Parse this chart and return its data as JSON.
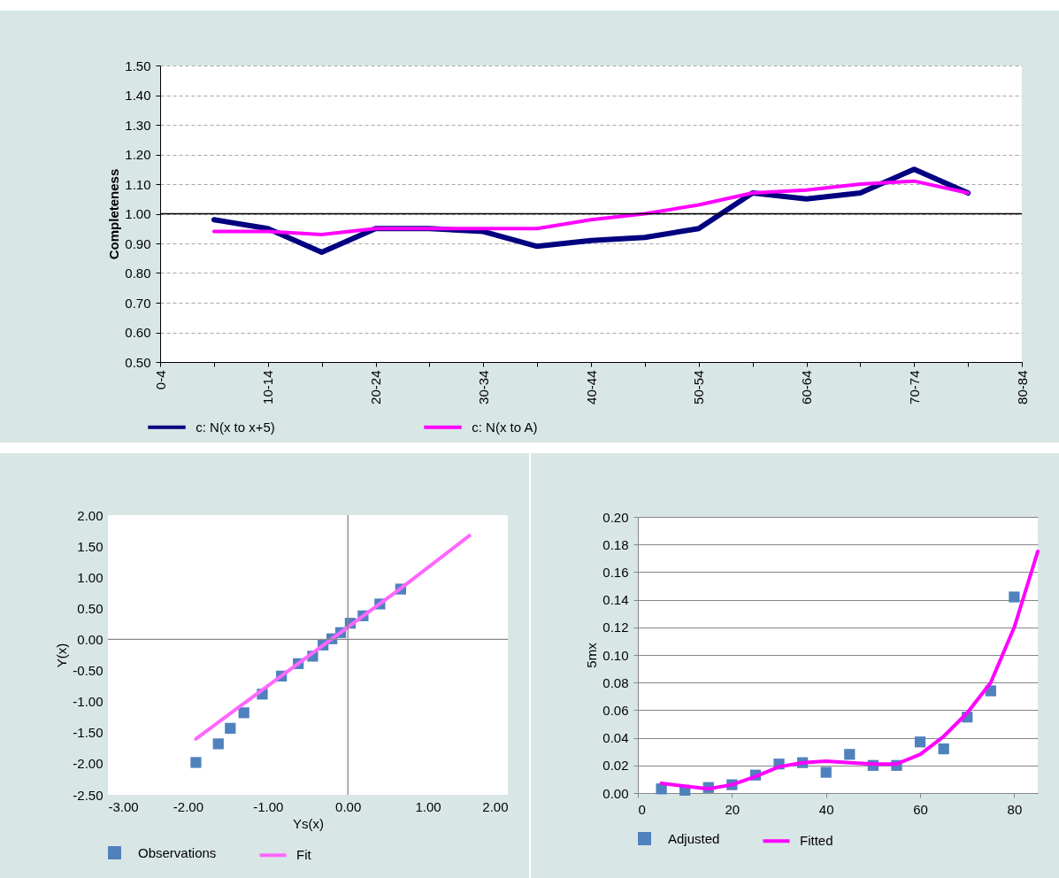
{
  "chart_data": [
    {
      "type": "line",
      "ylabel": "Completeness",
      "categories": [
        "0-4",
        null,
        "10-14",
        null,
        "20-24",
        null,
        "30-34",
        null,
        "40-44",
        null,
        "50-54",
        null,
        "60-64",
        null,
        "70-74",
        null,
        "80-84"
      ],
      "series": [
        {
          "name": "c: N(x to x+5)",
          "color": "#000080",
          "values": [
            null,
            0.98,
            0.95,
            0.87,
            0.95,
            0.95,
            0.94,
            0.89,
            0.91,
            0.92,
            0.95,
            1.07,
            1.05,
            1.07,
            1.15,
            1.07,
            null
          ]
        },
        {
          "name": "c: N(x to A)",
          "color": "#ff00ff",
          "values": [
            null,
            0.94,
            0.94,
            0.93,
            0.95,
            0.95,
            0.95,
            0.95,
            0.98,
            1.0,
            1.03,
            1.07,
            1.08,
            1.1,
            1.11,
            1.07,
            null
          ]
        }
      ],
      "ylim": [
        0.5,
        1.5
      ],
      "yticks": [
        {
          "value": 0.5,
          "label": "0.50"
        },
        {
          "value": 0.6,
          "label": "0.60"
        },
        {
          "value": 0.7,
          "label": "0.70"
        },
        {
          "value": 0.8,
          "label": "0.80"
        },
        {
          "value": 0.9,
          "label": "0.90"
        },
        {
          "value": 1.0,
          "label": "1.00"
        },
        {
          "value": 1.1,
          "label": "1.10"
        },
        {
          "value": 1.2,
          "label": "1.20"
        },
        {
          "value": 1.3,
          "label": "1.30"
        },
        {
          "value": 1.4,
          "label": "1.40"
        },
        {
          "value": 1.5,
          "label": "1.50"
        }
      ],
      "ref_lines": [
        {
          "axis": "y",
          "value": 1.0,
          "color": "#000000"
        }
      ],
      "grid": "y",
      "legend": "bottom"
    },
    {
      "type": "scatter",
      "xlabel": "Ys(x)",
      "ylabel": "Y(x)",
      "series": [
        {
          "name": "Observations",
          "marker": "square",
          "color": "#4f81bd",
          "x": [
            -1.9,
            -1.62,
            -1.47,
            -1.3,
            -1.07,
            -0.83,
            -0.62,
            -0.44,
            -0.31,
            -0.2,
            -0.09,
            0.03,
            0.19,
            0.4,
            0.66
          ],
          "values": [
            -1.98,
            -1.68,
            -1.43,
            -1.18,
            -0.88,
            -0.59,
            -0.39,
            -0.27,
            -0.09,
            0.01,
            0.11,
            0.26,
            0.38,
            0.57,
            0.81
          ]
        },
        {
          "name": "Fit",
          "type": "line",
          "color": "#ff66ff",
          "x": [
            -1.9,
            -1.46,
            0.66,
            1.52
          ],
          "values": [
            -1.6,
            -1.18,
            0.82,
            1.67
          ]
        }
      ],
      "xlim": [
        -3,
        2
      ],
      "xticks": [
        {
          "value": -3,
          "label": "-3.00"
        },
        {
          "value": -2,
          "label": "-2.00"
        },
        {
          "value": -1,
          "label": "-1.00"
        },
        {
          "value": 0,
          "label": "0.00"
        },
        {
          "value": 1,
          "label": "1.00"
        },
        {
          "value": 2,
          "label": "2.00"
        }
      ],
      "ylim": [
        -2.5,
        2
      ],
      "yticks": [
        {
          "value": -2.5,
          "label": "-2.50"
        },
        {
          "value": -2,
          "label": "-2.00"
        },
        {
          "value": -1.5,
          "label": "-1.50"
        },
        {
          "value": -1,
          "label": "-1.00"
        },
        {
          "value": -0.5,
          "label": "-0.50"
        },
        {
          "value": 0,
          "label": "0.00"
        },
        {
          "value": 0.5,
          "label": "0.50"
        },
        {
          "value": 1,
          "label": "1.00"
        },
        {
          "value": 1.5,
          "label": "1.50"
        },
        {
          "value": 2,
          "label": "2.00"
        }
      ],
      "ref_lines": [
        {
          "axis": "x",
          "value": 0,
          "color": "#868686"
        },
        {
          "axis": "y",
          "value": 0,
          "color": "#868686"
        }
      ],
      "legend": "bottom"
    },
    {
      "type": "scatter",
      "ylabel": "5mx",
      "series": [
        {
          "name": "Adjusted",
          "marker": "square",
          "color": "#4f81bd",
          "x": [
            5,
            10,
            15,
            20,
            25,
            30,
            35,
            40,
            45,
            50,
            55,
            60,
            65,
            70,
            75,
            80
          ],
          "values": [
            0.003,
            0.002,
            0.004,
            0.006,
            0.013,
            0.021,
            0.022,
            0.015,
            0.028,
            0.02,
            0.02,
            0.037,
            0.032,
            0.055,
            0.074,
            0.142
          ]
        },
        {
          "name": "Fitted",
          "type": "line",
          "color": "#ff00ff",
          "x": [
            5,
            10,
            15,
            20,
            25,
            30,
            35,
            40,
            45,
            50,
            55,
            60,
            65,
            70,
            75,
            80,
            85
          ],
          "values": [
            0.007,
            0.005,
            0.003,
            0.006,
            0.012,
            0.019,
            0.022,
            0.023,
            0.022,
            0.021,
            0.021,
            0.028,
            0.041,
            0.058,
            0.08,
            0.12,
            0.175
          ]
        }
      ],
      "xlim": [
        0,
        85
      ],
      "xticks": [
        0,
        20,
        40,
        60,
        80
      ],
      "ylim": [
        0,
        0.2
      ],
      "yticks": [
        {
          "value": 0,
          "label": "0.00"
        },
        {
          "value": 0.02,
          "label": "0.02"
        },
        {
          "value": 0.04,
          "label": "0.04"
        },
        {
          "value": 0.06,
          "label": "0.06"
        },
        {
          "value": 0.08,
          "label": "0.08"
        },
        {
          "value": 0.1,
          "label": "0.10"
        },
        {
          "value": 0.12,
          "label": "0.12"
        },
        {
          "value": 0.14,
          "label": "0.14"
        },
        {
          "value": 0.16,
          "label": "0.16"
        },
        {
          "value": 0.18,
          "label": "0.18"
        },
        {
          "value": 0.2,
          "label": "0.20"
        }
      ],
      "grid": "y",
      "legend": "bottom"
    }
  ]
}
